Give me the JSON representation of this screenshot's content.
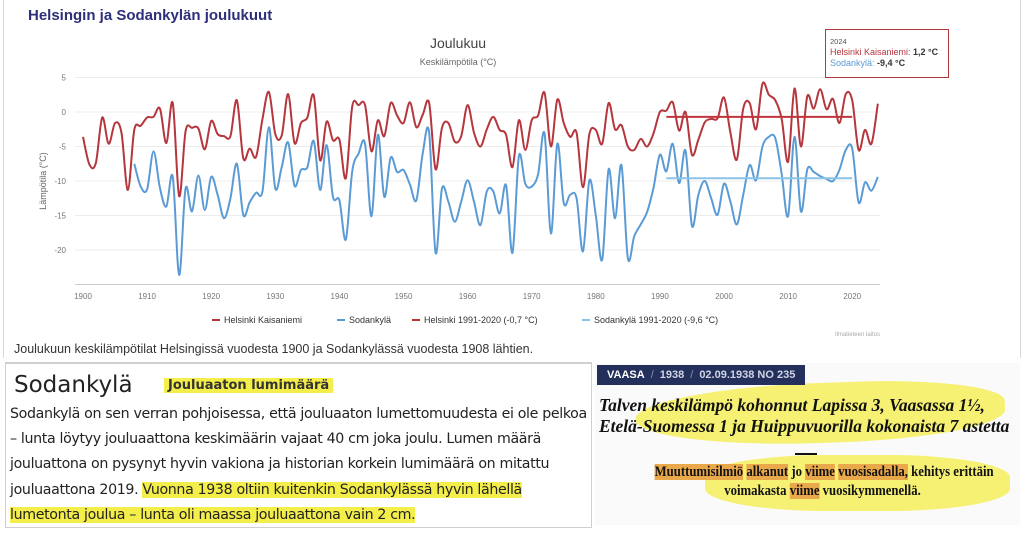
{
  "page_title": "Helsingin ja Sodankylän joulukuut",
  "caption": "Joulukuun keskilämpötilat Helsingissä vuodesta 1900 ja Sodankylässä vuodesta 1908 lähtien.",
  "credit": "Ilmatieteen laitos",
  "tooltip": {
    "year": "2024",
    "helsinki_label": "Helsinki Kaisaniemi:",
    "helsinki_value": "1,2 °C",
    "sodankyla_label": "Sodankylä:",
    "sodankyla_value": "-9,4 °C"
  },
  "colors": {
    "helsinki": "#b5363d",
    "sodankyla": "#5b9bd5",
    "helsinki_mean": "#c0343c",
    "sodankyla_mean": "#8cc4e8"
  },
  "chart_data": {
    "type": "line",
    "title": "Joulukuu",
    "subtitle": "Keskilämpötila (°C)",
    "xlabel": "",
    "ylabel": "Lämpötila (°C)",
    "xlim": [
      1900,
      2024
    ],
    "ylim": [
      -25,
      5
    ],
    "x_ticks": [
      "1900",
      "1910",
      "1920",
      "1930",
      "1940",
      "1950",
      "1960",
      "1970",
      "1980",
      "1990",
      "2000",
      "2010",
      "2020"
    ],
    "y_ticks": [
      "5",
      "0",
      "-5",
      "-10",
      "-15",
      "-20"
    ],
    "grid": true,
    "legend_position": "bottom",
    "series": [
      {
        "name": "Helsinki Kaisaniemi",
        "start_year": 1900,
        "values": [
          -3.6,
          -7.6,
          -7.4,
          -0.8,
          -4.6,
          -1.6,
          -3.0,
          -11.3,
          -2.6,
          -2.0,
          -0.8,
          -0.7,
          0.5,
          -4.5,
          1.3,
          -12.2,
          -2.8,
          -2.3,
          -2.4,
          -5.4,
          -1.3,
          -3.2,
          -3.5,
          -3.5,
          1.7,
          -6.7,
          -5.3,
          -6.5,
          -1.0,
          2.9,
          -3.2,
          -3.4,
          2.6,
          -4.5,
          -1.6,
          -0.8,
          2.4,
          -7.0,
          -1.4,
          -4.1,
          -4.0,
          -9.6,
          0.8,
          1.0,
          1.0,
          -5.7,
          -1.2,
          -3.5,
          1.3,
          -0.5,
          -1.6,
          1.4,
          -2.2,
          -0.4,
          1.3,
          -8.3,
          -2.3,
          -1.6,
          -4.3,
          -3.5,
          1.0,
          -3.0,
          -5.0,
          -2.5,
          -0.7,
          -2.6,
          -3.3,
          -8.0,
          -1.2,
          -5.5,
          -1.2,
          -0.5,
          2.8,
          -5.0,
          1.8,
          -1.6,
          -3.6,
          -3.0,
          -10.9,
          -3.2,
          -2.6,
          -4.6,
          1.3,
          -2.5,
          -1.9,
          -5.0,
          -5.5,
          -3.9,
          -5.0,
          -3.1,
          0.0,
          0.2,
          1.4,
          -2.7,
          0.0,
          -6.2,
          -4.0,
          -1.5,
          -1.0,
          -0.9,
          2.1,
          -3.0,
          -6.9,
          0.5,
          1.3,
          -2.5,
          4.1,
          2.5,
          1.7,
          -1.0,
          -7.2,
          3.4,
          -5.0,
          2.3,
          0.5,
          3.3,
          0.4,
          1.9,
          -1.6,
          2.6,
          1.7,
          -5.5,
          -2.6,
          -4.6,
          1.2
        ]
      },
      {
        "name": "Sodankylä",
        "start_year": 1908,
        "values": [
          -7.5,
          -10.8,
          -11.2,
          -5.7,
          -11.0,
          -13.7,
          -9.4,
          -23.6,
          -11.1,
          -14.4,
          -9.2,
          -14.2,
          -9.4,
          -12.0,
          -15.4,
          -12.5,
          -7.5,
          -14.9,
          -13.1,
          -11.7,
          -11.5,
          -2.2,
          -11.1,
          -8.0,
          -4.4,
          -10.7,
          -8.4,
          -8.0,
          -4.2,
          -11.3,
          -4.8,
          -12.3,
          -12.8,
          -18.5,
          -8.6,
          -6.0,
          -4.6,
          -15.1,
          -3.3,
          -12.3,
          -6.6,
          -8.7,
          -8.4,
          -10.5,
          -12.8,
          -6.0,
          -3.0,
          -20.4,
          -11.1,
          -13.0,
          -15.9,
          -13.0,
          -9.9,
          -13.0,
          -16.4,
          -11.5,
          -11.5,
          -14.7,
          -10.6,
          -20.4,
          -6.4,
          -10.4,
          -10.8,
          -9.0,
          -3.1,
          -17.6,
          -4.6,
          -13.2,
          -12.0,
          -12.5,
          -20.2,
          -9.9,
          -15.0,
          -21.4,
          -8.3,
          -15.4,
          -7.7,
          -21.2,
          -18.0,
          -16.3,
          -14.5,
          -11.0,
          -6.2,
          -8.6,
          -4.6,
          -10.3,
          -5.6,
          -16.5,
          -12.0,
          -10.0,
          -12.5,
          -14.9,
          -10.4,
          -13.0,
          -16.3,
          -12.0,
          -7.7,
          -9.9,
          -5.0,
          -3.6,
          -3.8,
          -9.0,
          -15.1,
          -3.6,
          -14.4,
          -8.3,
          -8.7,
          -9.3,
          -9.7,
          -10.0,
          -8.4,
          -5.5,
          -5.3,
          -13.1,
          -10.2,
          -11.4,
          -9.4
        ]
      },
      {
        "name": "Helsinki 1991-2020 (-0,7 °C)",
        "x": [
          1991,
          2020
        ],
        "values": [
          -0.7,
          -0.7
        ]
      },
      {
        "name": "Sodankylä 1991-2020 (-9,6 °C)",
        "x": [
          1991,
          2020
        ],
        "values": [
          -9.6,
          -9.6
        ]
      }
    ]
  },
  "snow_article": {
    "place": "Sodankylä",
    "heading": "Jouluaaton lumimäärä",
    "text_plain": "Sodankylä on sen verran pohjoisessa, että jouluaaton lumettomuudesta ei ole pelkoa – lunta löytyy jouluaattona keskimäärin vajaat 40 cm joka joulu. Lumen määrä jouluattona on pysynyt hyvin vakiona ja historian korkein lumimäärä on mitattu jouluaattona 2019. ",
    "text_highlight": "Vuonna 1938 oltiin kuitenkin Sodankylässä hyvin lähellä lumetonta joulua – lunta oli maassa jouluaattona vain 2 cm."
  },
  "newspaper": {
    "paper": "VAASA",
    "year": "1938",
    "issue": "02.09.1938 NO 235",
    "headline_1": "Talven keskilämpö kohonnut Lapissa 3, Vaasassa 1½,",
    "headline_2": "Etelä-Suomessa 1 ja Huippuvuorilla kokonaista 7 astetta",
    "sub_w1": "Muuttumisilmiö",
    "sub_w2": "alkanut",
    "sub_w3": "jo",
    "sub_w4": "viime",
    "sub_w5": "vuosisadalla,",
    "sub_w6": "kehitys erittäin",
    "sub_l2a": "voimakasta",
    "sub_l2b": "viime",
    "sub_l2c": "vuosikymmenellä."
  }
}
